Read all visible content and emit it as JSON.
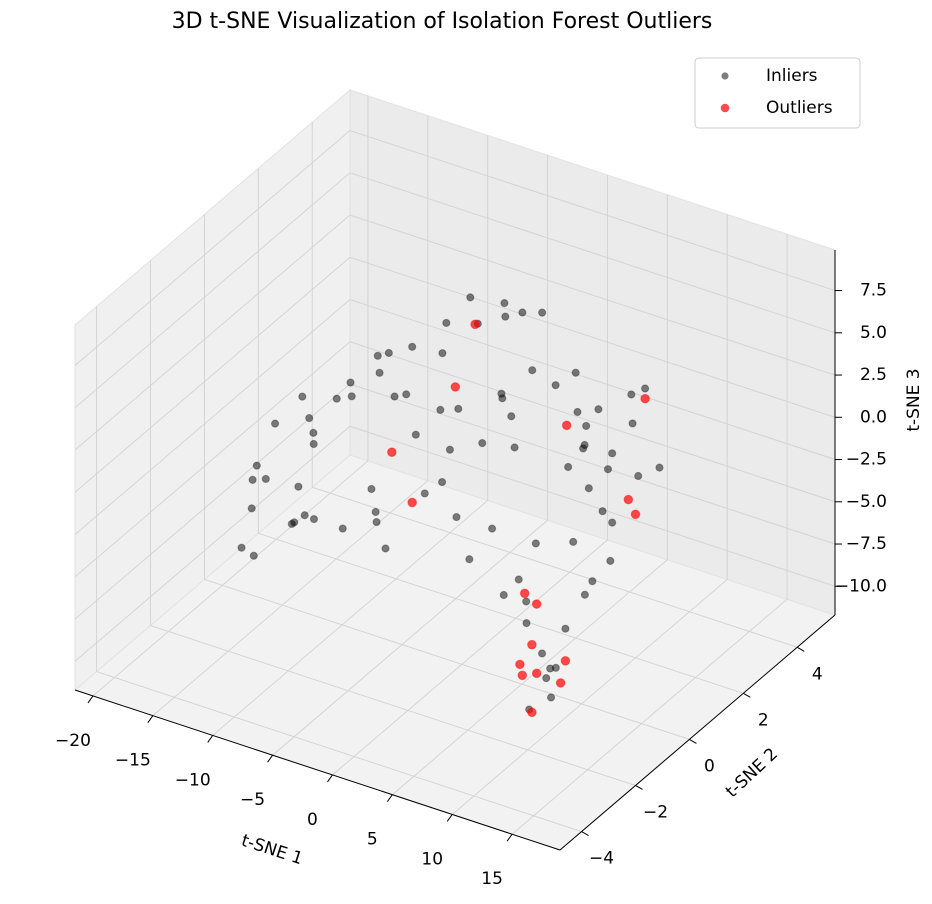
{
  "chart_data": {
    "type": "scatter3d",
    "title": "3D t-SNE Visualization of Isolation Forest Outliers",
    "xlabel": "t-SNE 1",
    "ylabel": "t-SNE 2",
    "zlabel": "t-SNE 3",
    "xlim": [
      -21.5,
      19
    ],
    "ylim": [
      -4.8,
      5.4
    ],
    "zlim": [
      -11.7,
      9.9
    ],
    "xticks": [
      {
        "value": -20,
        "label": "−20"
      },
      {
        "value": -15,
        "label": "−15"
      },
      {
        "value": -10,
        "label": "−10"
      },
      {
        "value": -5,
        "label": "−5"
      },
      0,
      5,
      10,
      15
    ],
    "yticks": [
      {
        "value": -4,
        "label": "−4"
      },
      {
        "value": -2,
        "label": "−2"
      },
      0,
      2,
      4
    ],
    "zticks": [
      {
        "value": -10,
        "label": "−10.0"
      },
      {
        "value": -7.5,
        "label": "−7.5"
      },
      {
        "value": -5,
        "label": "−5.0"
      },
      {
        "value": -2.5,
        "label": "−2.5"
      },
      {
        "value": 0,
        "label": "0.0"
      },
      {
        "value": 2.5,
        "label": "2.5"
      },
      {
        "value": 5,
        "label": "5.0"
      },
      {
        "value": 7.5,
        "label": "7.5"
      }
    ],
    "grid": true,
    "legend": "upper right",
    "series": [
      {
        "name": "Inliers",
        "color": "#000000",
        "alpha": 0.5,
        "x": [
          -18.4,
          -18.0,
          -16.8,
          -15.6,
          -14.0,
          -12.4,
          -13.2,
          -14.0,
          -10.9,
          -9.3,
          -7.7,
          -6.1,
          -3.7,
          -1.3,
          -3.8,
          -1.4,
          1.0,
          2.2,
          -3.4,
          -6.9,
          -4.5,
          -2.1,
          1.05,
          3.4,
          5.8,
          7.4,
          -0.55,
          -3.7,
          2.6,
          -6.1,
          11.4,
          13.7,
          15.3,
          13.0,
          12.2,
          14.5,
          10.6,
          13.0,
          9.8,
          16.5,
          -7.7,
          -4.5,
          -1.3,
          1.8,
          5.0,
          8.2,
          -10.1,
          -5.3,
          1.05,
          -12.4,
          11.5,
          12.6,
          13.0,
          13.8,
          12.6,
          15.4,
          16.8,
          15.4,
          14.6,
          16.9,
          13.8,
          14.2,
          -17.5,
          -16,
          -15,
          -13.5,
          -12,
          -11,
          -9,
          -8,
          -5,
          -2,
          0,
          3,
          5,
          7,
          9,
          10,
          12,
          14,
          4,
          -3,
          8,
          11,
          13,
          -14,
          -6
        ],
        "y": [
          0,
          0.2,
          -0.3,
          0,
          0.3,
          0,
          -0.2,
          0,
          0.2,
          0,
          0.3,
          0,
          -0.2,
          0,
          2,
          2.2,
          1.8,
          2,
          2.1,
          1,
          1.2,
          0.8,
          1,
          1.1,
          0.9,
          1,
          1,
          1.2,
          0.8,
          1,
          0,
          0.2,
          0,
          -0.2,
          0,
          0.1,
          0,
          -0.2,
          0.2,
          0,
          -1,
          -1.2,
          -0.8,
          -1,
          -1.1,
          -0.9,
          -1,
          -1,
          -1.2,
          -0.8,
          -3,
          -3.2,
          -2.8,
          -3,
          -3.1,
          -3,
          -2.9,
          -2,
          -3,
          -2,
          -2,
          -3,
          0.5,
          -0.5,
          1,
          0.5,
          -0.5,
          0.8,
          1.5,
          0.5,
          1.5,
          2.5,
          1.5,
          0.5,
          2,
          1.5,
          0.5,
          -0.5,
          1,
          -1,
          -1.5,
          -1.5,
          -2,
          -2.5,
          -2.5,
          -1.5,
          -0.5
        ],
        "z": [
          -9.1,
          -6.95,
          -4.3,
          -1.1,
          0.46,
          -0.9,
          -4.0,
          -6.57,
          1.2,
          2.8,
          4.35,
          5.3,
          6.5,
          8.2,
          6.4,
          6.35,
          6.9,
          6.9,
          4.8,
          1.3,
          0.67,
          1.84,
          3.2,
          5.0,
          4.95,
          3.6,
          -0.1,
          -1.5,
          0.65,
          -0.9,
          6.06,
          7.2,
          8.2,
          4.1,
          2.7,
          2.7,
          1.2,
          0.0,
          3.3,
          3.8,
          -4.1,
          -2.1,
          -0.8,
          -1.2,
          -1.0,
          -1.4,
          -4.1,
          -1.2,
          0.97,
          -5.2,
          0.1,
          -1.95,
          -4.2,
          -5.2,
          -7.2,
          -1.9,
          0.3,
          -0.45,
          -4.4,
          1.1,
          1.5,
          -6.25,
          -5.5,
          -3,
          -2,
          -2.5,
          -5,
          0.5,
          0,
          3,
          3.5,
          5,
          2,
          3,
          4,
          2,
          2.5,
          3,
          4,
          2,
          -2.5,
          -3.5,
          -3,
          -2,
          -5.5,
          -6.5,
          -4
        ]
      },
      {
        "name": "Outliers",
        "color": "#ff0000",
        "alpha": 0.7,
        "x": [
          -3.4,
          -2.8,
          -8.1,
          -1.9,
          6.5,
          15.3,
          13.9,
          14.5,
          12.0,
          13.0,
          12.6,
          11.6,
          11.8,
          13.0,
          15.0,
          15.4,
          12.6
        ],
        "y": [
          2,
          1,
          1,
          -1,
          1,
          0,
          0,
          0,
          -3,
          -3,
          -3,
          -3,
          -3,
          -3,
          -3,
          -3,
          -3
        ],
        "z": [
          4.9,
          2.7,
          -2.4,
          -1.2,
          2.6,
          7.6,
          1.3,
          0.57,
          -0.6,
          -1.0,
          -3.5,
          -4.9,
          -5.5,
          -5.1,
          -5.2,
          -3.8,
          -7.5
        ]
      }
    ]
  }
}
